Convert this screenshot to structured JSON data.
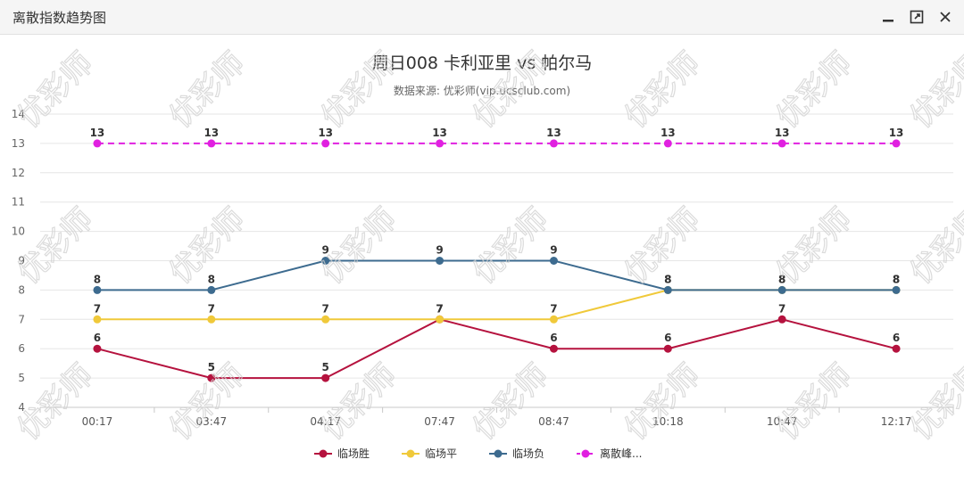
{
  "window": {
    "title": "离散指数趋势图",
    "controls": {
      "minimize_icon": "minimize-icon",
      "maximize_icon": "maximize-icon",
      "close_icon": "close-icon"
    }
  },
  "chart_data": {
    "type": "line",
    "title": "周日008 卡利亚里 vs 帕尔马",
    "subtitle": "数据来源: 优彩师(vip.ucsclub.com)",
    "categories": [
      "00:17",
      "03:47",
      "04:17",
      "07:47",
      "08:47",
      "10:18",
      "10:47",
      "12:17"
    ],
    "ylim": [
      4,
      14
    ],
    "yticks": [
      4,
      5,
      6,
      7,
      8,
      9,
      10,
      11,
      12,
      13,
      14
    ],
    "grid": true,
    "legend_position": "bottom",
    "series": [
      {
        "name": "临场胜",
        "color": "#b5123e",
        "dashed": false,
        "values": [
          6,
          5,
          5,
          7,
          6,
          6,
          7,
          6
        ]
      },
      {
        "name": "临场平",
        "color": "#f0c93a",
        "dashed": false,
        "values": [
          7,
          7,
          7,
          7,
          7,
          8,
          8,
          8
        ]
      },
      {
        "name": "临场负",
        "color": "#3d6b8f",
        "dashed": false,
        "values": [
          8,
          8,
          9,
          9,
          9,
          8,
          8,
          8
        ]
      },
      {
        "name": "离散峰...",
        "color": "#e020e0",
        "dashed": true,
        "values": [
          13,
          13,
          13,
          13,
          13,
          13,
          13,
          13
        ]
      }
    ]
  },
  "watermark": "优彩师"
}
